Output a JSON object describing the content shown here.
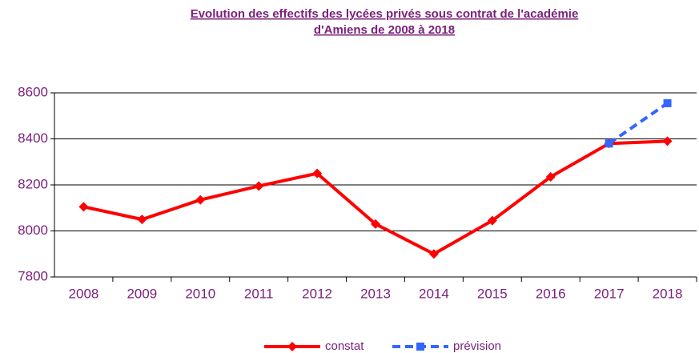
{
  "chart_data": {
    "type": "line",
    "title": [
      "Evolution des effectifs des lycées privés sous contrat de l'académie",
      "d'Amiens de 2008 à 2018"
    ],
    "categories": [
      "2008",
      "2009",
      "2010",
      "2011",
      "2012",
      "2013",
      "2014",
      "2015",
      "2016",
      "2017",
      "2018"
    ],
    "series": [
      {
        "name": "constat",
        "color": "#ff0000",
        "values": [
          8105,
          8050,
          8135,
          8195,
          8250,
          8030,
          7900,
          8045,
          8235,
          8380,
          8390
        ]
      },
      {
        "name": "prévision",
        "color": "#3366ff",
        "values": [
          null,
          null,
          null,
          null,
          null,
          null,
          null,
          null,
          null,
          8380,
          8555
        ]
      }
    ],
    "ylim": [
      7800,
      8600
    ],
    "yticks": [
      7800,
      8000,
      8200,
      8400,
      8600
    ],
    "grid": true,
    "legend": "bottom"
  }
}
